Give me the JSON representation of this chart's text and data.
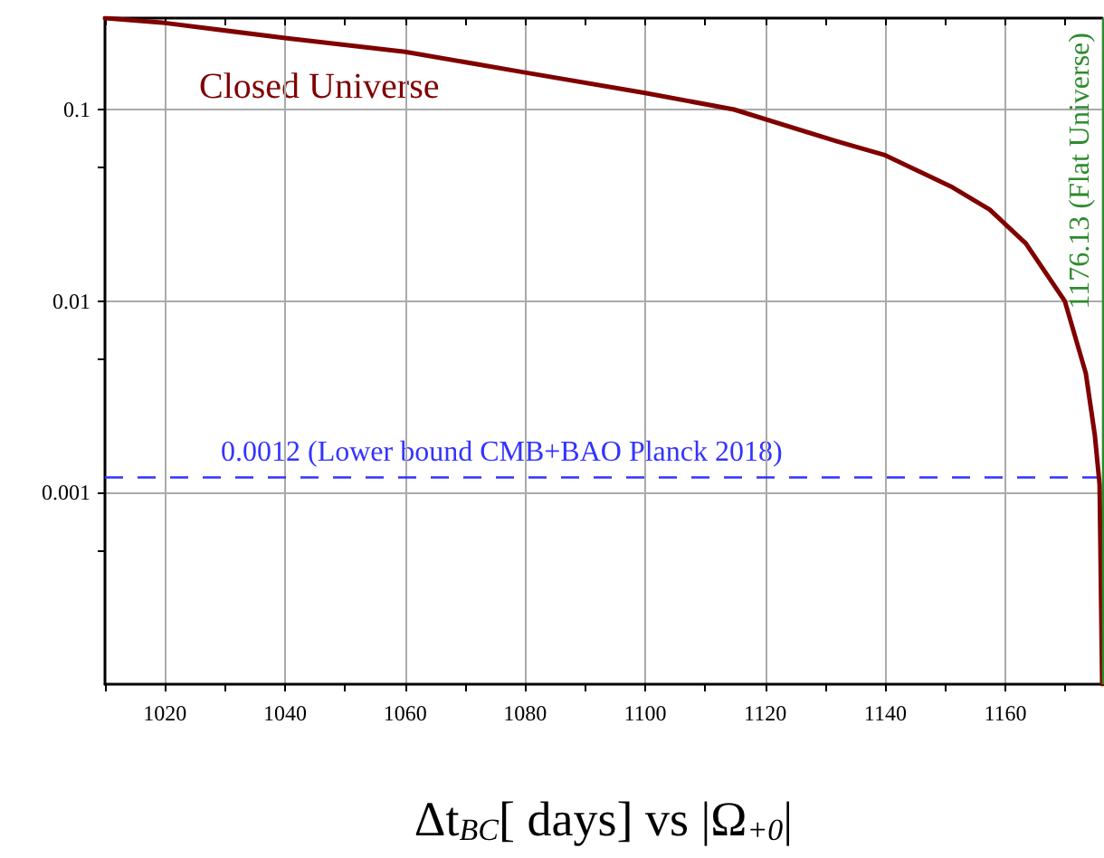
{
  "chart_data": {
    "type": "line",
    "xlabel": "Δt$_{BC}$[ days] vs |Ω$_{+0}$|",
    "x": [
      1010,
      1020,
      1040,
      1060,
      1080,
      1100,
      1114.8,
      1131.8,
      1139.8,
      1150.9,
      1157.4,
      1163.4,
      1169.9,
      1173.4,
      1174.9,
      1175.7,
      1176.13
    ],
    "series": [
      {
        "name": "Closed Universe",
        "color": "#800000",
        "values": [
          0.3,
          0.283,
          0.236,
          0.2,
          0.156,
          0.122,
          0.1,
          0.0685,
          0.058,
          0.0397,
          0.03,
          0.02,
          0.01,
          0.0042,
          0.002,
          0.0011,
          0.0001
        ]
      }
    ],
    "xlim": [
      1010,
      1176.13
    ],
    "xticks": [
      {
        "value": 1010,
        "label": null
      },
      1020,
      {
        "value": 1030,
        "label": null
      },
      1040,
      {
        "value": 1050,
        "label": null
      },
      1060,
      {
        "value": 1070,
        "label": null
      },
      1080,
      {
        "value": 1090,
        "label": null
      },
      1100,
      {
        "value": 1110,
        "label": null
      },
      1120,
      {
        "value": 1130,
        "label": null
      },
      1140,
      {
        "value": 1150,
        "label": null
      },
      1160,
      {
        "value": 1170,
        "label": null
      }
    ],
    "ylim": [
      0.0001,
      0.3
    ],
    "yticks": [
      {
        "value": 0.0005,
        "label": null
      },
      0.001,
      {
        "value": 0.005,
        "label": null
      },
      0.01,
      {
        "value": 0.05,
        "label": null
      },
      0.1
    ],
    "log": "y",
    "grid": true,
    "legend": false,
    "marker": "none",
    "line_style": "solid",
    "ref_lines": [
      {
        "axis": "y",
        "value": 0.0012,
        "label": "0.0012 (Lower bound CMB+BAO Planck 2018)",
        "color": "#3333ff",
        "line_style": "dashed"
      },
      {
        "axis": "x",
        "value": 1176.13,
        "label": "1176.13 (Flat Universe)",
        "color": "#2e8b2e",
        "line_style": "solid"
      }
    ]
  }
}
